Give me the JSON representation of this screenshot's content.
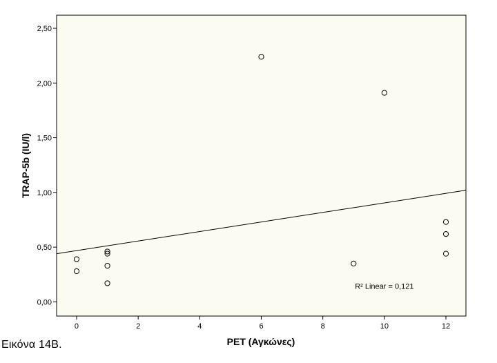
{
  "caption": "Εικόνα 14Β.",
  "chart_data": {
    "type": "scatter",
    "xlabel": "PET (Αγκώνες)",
    "ylabel": "TRAP-5b (IU/l)",
    "x_ticks": [
      0,
      2,
      4,
      6,
      8,
      10,
      12
    ],
    "x_tick_labels": [
      "0",
      "2",
      "4",
      "6",
      "8",
      "10",
      "12"
    ],
    "y_ticks": [
      0.0,
      0.5,
      1.0,
      1.5,
      2.0,
      2.5
    ],
    "y_tick_labels": [
      "0,00",
      "0,50",
      "1,00",
      "1,50",
      "2,00",
      "2,50"
    ],
    "xlim": [
      -0.65,
      12.65
    ],
    "ylim": [
      -0.13,
      2.62
    ],
    "points": [
      {
        "x": 0,
        "y": 0.39
      },
      {
        "x": 0,
        "y": 0.28
      },
      {
        "x": 1,
        "y": 0.46
      },
      {
        "x": 1,
        "y": 0.44
      },
      {
        "x": 1,
        "y": 0.33
      },
      {
        "x": 1,
        "y": 0.17
      },
      {
        "x": 6,
        "y": 2.24
      },
      {
        "x": 9,
        "y": 0.35
      },
      {
        "x": 10,
        "y": 1.91
      },
      {
        "x": 12,
        "y": 0.73
      },
      {
        "x": 12,
        "y": 0.62
      },
      {
        "x": 12,
        "y": 0.44
      }
    ],
    "fit_line": {
      "x": [
        -0.65,
        12.65
      ],
      "y": [
        0.44,
        1.02
      ]
    },
    "annotation": "R² Linear = 0,121",
    "annotation_anchor": {
      "x": 10.0,
      "y": 0.12
    },
    "grid": false,
    "legend": "none"
  }
}
